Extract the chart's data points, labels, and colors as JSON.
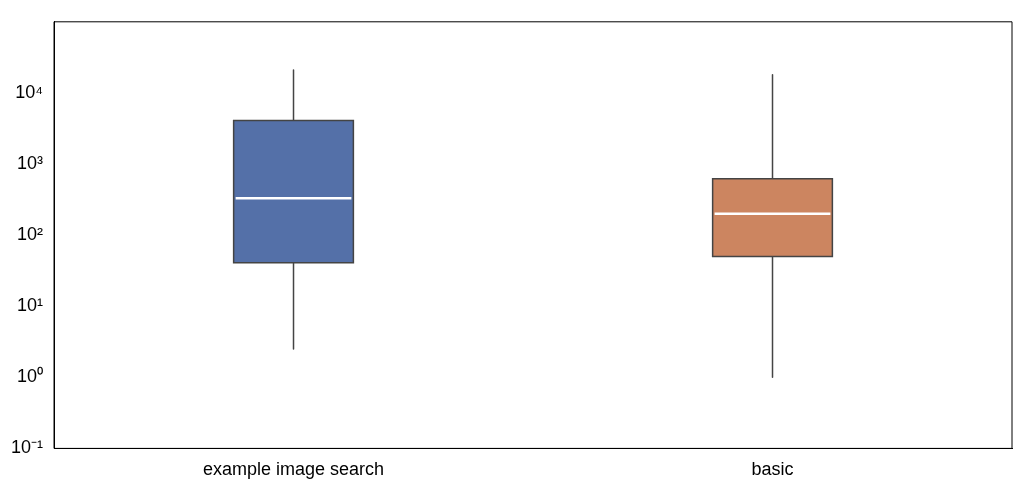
{
  "chart_data": {
    "type": "box",
    "categories": [
      "example image search",
      "basic"
    ],
    "boxes": [
      {
        "low": 2.5,
        "q1": 41,
        "median": 330,
        "q3": 4100,
        "high": 21000
      },
      {
        "low": 1,
        "q1": 50,
        "median": 200,
        "q3": 620,
        "high": 18000
      }
    ],
    "colors": [
      "#5470a8",
      "#cc8560"
    ],
    "log": "y",
    "ylim": [
      0.1,
      100000
    ],
    "yticks": [
      {
        "value": 0.1,
        "label": "10⁻¹"
      },
      {
        "value": 1,
        "label": "10⁰"
      },
      {
        "value": 10,
        "label": "10¹"
      },
      {
        "value": 100,
        "label": "10²"
      },
      {
        "value": 1000,
        "label": "10³"
      },
      {
        "value": 10000,
        "label": "10⁴"
      }
    ],
    "grid": false,
    "legend": false
  }
}
